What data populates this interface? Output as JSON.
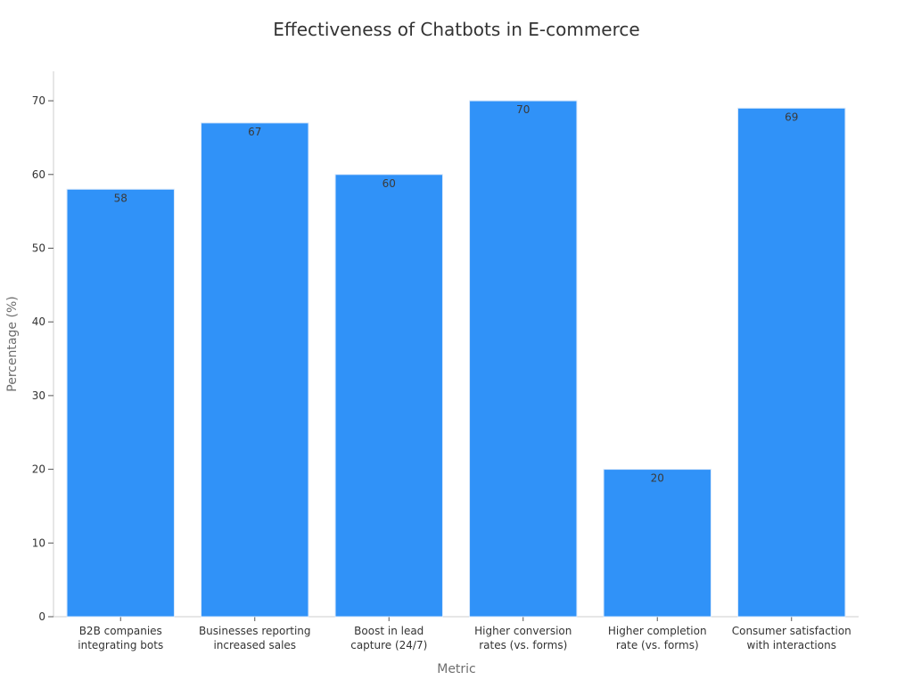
{
  "chart_data": {
    "type": "bar",
    "title": "Effectiveness of Chatbots in E-commerce",
    "xlabel": "Metric",
    "ylabel": "Percentage (%)",
    "ylim": [
      0,
      74
    ],
    "yticks": [
      0,
      10,
      20,
      30,
      40,
      50,
      60,
      70
    ],
    "categories": [
      [
        "B2B companies",
        "integrating bots"
      ],
      [
        "Businesses reporting",
        "increased sales"
      ],
      [
        "Boost in lead",
        "capture (24/7)"
      ],
      [
        "Higher conversion",
        "rates (vs. forms)"
      ],
      [
        "Higher completion",
        "rate (vs. forms)"
      ],
      [
        "Consumer satisfaction",
        "with interactions"
      ]
    ],
    "values": [
      58,
      67,
      60,
      70,
      20,
      69
    ],
    "bar_color": "#3092f8",
    "grid": false,
    "legend": "none"
  }
}
